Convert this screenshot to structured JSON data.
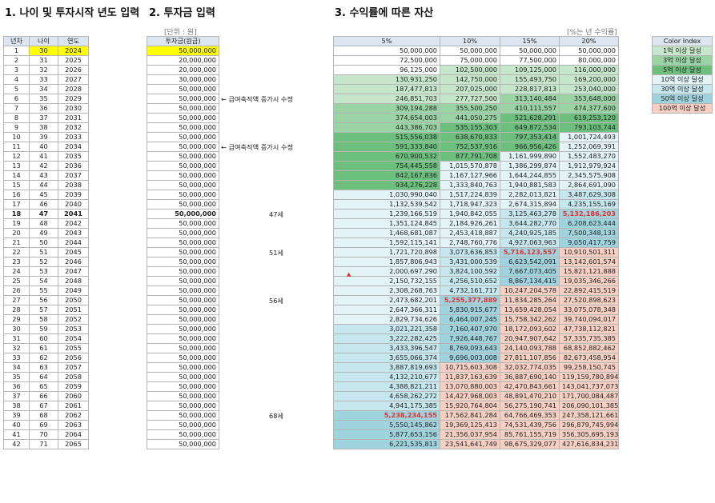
{
  "titles": {
    "section1": "1. 나이 및 투자시작 년도 입력",
    "section2": "2. 투자금 입력",
    "section3": "3. 수익률에 따른 자산"
  },
  "unit_labels": {
    "won": "[단위 : 원]",
    "rate": "[%는 년 수익률]"
  },
  "headers": {
    "year_no": "년차",
    "age": "나이",
    "year": "연도",
    "investment": "투자금(원금)"
  },
  "rate_headers": [
    "5%",
    "10%",
    "15%",
    "20%"
  ],
  "color_index": {
    "title": "Color Index",
    "items": [
      {
        "label": "1억 이상 달성",
        "color": "#c6e7cb"
      },
      {
        "label": "3억 이상 달성",
        "color": "#9ad4a4"
      },
      {
        "label": "5억 이상 달성",
        "color": "#6cbf7c"
      },
      {
        "label": "10억 이상 달성",
        "color": "#e4f3f6"
      },
      {
        "label": "30억 이상 달성",
        "color": "#c6e7ee"
      },
      {
        "label": "50억 이상 달성",
        "color": "#9fd3de"
      },
      {
        "label": "100억 이상 달성",
        "color": "#f7cfc3"
      }
    ]
  },
  "notes": [
    {
      "row": 6,
      "text": "← 급여축적액 증가시 수정"
    },
    {
      "row": 11,
      "text": "← 급여축적액 증가시 수정"
    }
  ],
  "age_labels": [
    {
      "row": 18,
      "text": "47세"
    },
    {
      "row": 22,
      "text": "51세"
    },
    {
      "row": 27,
      "text": "56세"
    },
    {
      "row": 39,
      "text": "68세"
    }
  ],
  "rows": [
    {
      "n": "1",
      "age": "30",
      "year": "2024",
      "inv": "50,000,000",
      "v": [
        "50,000,000",
        "50,000,000",
        "50,000,000",
        "50,000,000"
      ]
    },
    {
      "n": "2",
      "age": "31",
      "year": "2025",
      "inv": "20,000,000",
      "v": [
        "72,500,000",
        "75,000,000",
        "77,500,000",
        "80,000,000"
      ]
    },
    {
      "n": "3",
      "age": "32",
      "year": "2026",
      "inv": "20,000,000",
      "v": [
        "96,125,000",
        "102,500,000",
        "109,125,000",
        "116,000,000"
      ]
    },
    {
      "n": "4",
      "age": "33",
      "year": "2027",
      "inv": "30,000,000",
      "v": [
        "130,931,250",
        "142,750,000",
        "155,493,750",
        "169,200,000"
      ]
    },
    {
      "n": "5",
      "age": "34",
      "year": "2028",
      "inv": "50,000,000",
      "v": [
        "187,477,813",
        "207,025,000",
        "228,817,813",
        "253,040,000"
      ]
    },
    {
      "n": "6",
      "age": "35",
      "year": "2029",
      "inv": "50,000,000",
      "v": [
        "246,851,703",
        "277,727,500",
        "313,140,484",
        "353,648,000"
      ]
    },
    {
      "n": "7",
      "age": "36",
      "year": "2030",
      "inv": "50,000,000",
      "v": [
        "309,194,288",
        "355,500,250",
        "410,111,557",
        "474,377,600"
      ]
    },
    {
      "n": "8",
      "age": "37",
      "year": "2031",
      "inv": "50,000,000",
      "v": [
        "374,654,003",
        "441,050,275",
        "521,628,291",
        "619,253,120"
      ]
    },
    {
      "n": "9",
      "age": "38",
      "year": "2032",
      "inv": "50,000,000",
      "v": [
        "443,386,703",
        "535,155,303",
        "649,872,534",
        "793,103,744"
      ]
    },
    {
      "n": "10",
      "age": "39",
      "year": "2033",
      "inv": "50,000,000",
      "v": [
        "515,556,038",
        "638,670,833",
        "797,353,414",
        "1,001,724,493"
      ]
    },
    {
      "n": "11",
      "age": "40",
      "year": "2034",
      "inv": "50,000,000",
      "v": [
        "591,333,840",
        "752,537,916",
        "966,956,426",
        "1,252,069,391"
      ]
    },
    {
      "n": "12",
      "age": "41",
      "year": "2035",
      "inv": "50,000,000",
      "v": [
        "670,900,532",
        "877,791,708",
        "1,161,999,890",
        "1,552,483,270"
      ]
    },
    {
      "n": "13",
      "age": "42",
      "year": "2036",
      "inv": "50,000,000",
      "v": [
        "754,445,558",
        "1,015,570,878",
        "1,386,299,874",
        "1,912,979,924"
      ]
    },
    {
      "n": "14",
      "age": "43",
      "year": "2037",
      "inv": "50,000,000",
      "v": [
        "842,167,836",
        "1,167,127,966",
        "1,644,244,855",
        "2,345,575,908"
      ]
    },
    {
      "n": "15",
      "age": "44",
      "year": "2038",
      "inv": "50,000,000",
      "v": [
        "934,276,228",
        "1,333,840,763",
        "1,940,881,583",
        "2,864,691,090"
      ]
    },
    {
      "n": "16",
      "age": "45",
      "year": "2039",
      "inv": "50,000,000",
      "v": [
        "1,030,990,040",
        "1,517,224,839",
        "2,282,013,821",
        "3,487,629,308"
      ]
    },
    {
      "n": "17",
      "age": "46",
      "year": "2040",
      "inv": "50,000,000",
      "v": [
        "1,132,539,542",
        "1,718,947,323",
        "2,674,315,894",
        "4,235,155,169"
      ]
    },
    {
      "n": "18",
      "age": "47",
      "year": "2041",
      "inv": "50,000,000",
      "v": [
        "1,239,166,519",
        "1,940,842,055",
        "3,125,463,278",
        "5,132,186,203"
      ]
    },
    {
      "n": "19",
      "age": "48",
      "year": "2042",
      "inv": "50,000,000",
      "v": [
        "1,351,124,845",
        "2,184,926,261",
        "3,644,282,770",
        "6,208,623,444"
      ]
    },
    {
      "n": "20",
      "age": "49",
      "year": "2043",
      "inv": "50,000,000",
      "v": [
        "1,468,681,087",
        "2,453,418,887",
        "4,240,925,185",
        "7,500,348,133"
      ]
    },
    {
      "n": "21",
      "age": "50",
      "year": "2044",
      "inv": "50,000,000",
      "v": [
        "1,592,115,141",
        "2,748,760,776",
        "4,927,063,963",
        "9,050,417,759"
      ]
    },
    {
      "n": "22",
      "age": "51",
      "year": "2045",
      "inv": "50,000,000",
      "v": [
        "1,721,720,898",
        "3,073,636,853",
        "5,716,123,557",
        "10,910,501,311"
      ]
    },
    {
      "n": "23",
      "age": "52",
      "year": "2046",
      "inv": "50,000,000",
      "v": [
        "1,857,806,943",
        "3,431,000,539",
        "6,623,542,091",
        "13,142,601,574"
      ]
    },
    {
      "n": "24",
      "age": "53",
      "year": "2047",
      "inv": "50,000,000",
      "v": [
        "2,000,697,290",
        "3,824,100,592",
        "7,667,073,405",
        "15,821,121,888"
      ]
    },
    {
      "n": "25",
      "age": "54",
      "year": "2048",
      "inv": "50,000,000",
      "v": [
        "2,150,732,155",
        "4,256,510,652",
        "8,867,134,415",
        "19,035,346,266"
      ]
    },
    {
      "n": "26",
      "age": "55",
      "year": "2049",
      "inv": "50,000,000",
      "v": [
        "2,308,268,763",
        "4,732,161,717",
        "10,247,204,578",
        "22,892,415,519"
      ]
    },
    {
      "n": "27",
      "age": "56",
      "year": "2050",
      "inv": "50,000,000",
      "v": [
        "2,473,682,201",
        "5,255,377,889",
        "11,834,285,264",
        "27,520,898,623"
      ]
    },
    {
      "n": "28",
      "age": "57",
      "year": "2051",
      "inv": "50,000,000",
      "v": [
        "2,647,366,311",
        "5,830,915,677",
        "13,659,428,054",
        "33,075,078,348"
      ]
    },
    {
      "n": "29",
      "age": "58",
      "year": "2052",
      "inv": "50,000,000",
      "v": [
        "2,829,734,626",
        "6,464,007,245",
        "15,758,342,262",
        "39,740,094,017"
      ]
    },
    {
      "n": "30",
      "age": "59",
      "year": "2053",
      "inv": "50,000,000",
      "v": [
        "3,021,221,358",
        "7,160,407,970",
        "18,172,093,602",
        "47,738,112,821"
      ]
    },
    {
      "n": "31",
      "age": "60",
      "year": "2054",
      "inv": "50,000,000",
      "v": [
        "3,222,282,425",
        "7,926,448,767",
        "20,947,907,642",
        "57,335,735,385"
      ]
    },
    {
      "n": "32",
      "age": "61",
      "year": "2055",
      "inv": "50,000,000",
      "v": [
        "3,433,396,547",
        "8,769,093,643",
        "24,140,093,788",
        "68,852,882,462"
      ]
    },
    {
      "n": "33",
      "age": "62",
      "year": "2056",
      "inv": "50,000,000",
      "v": [
        "3,655,066,374",
        "9,696,003,008",
        "27,811,107,856",
        "82,673,458,954"
      ]
    },
    {
      "n": "34",
      "age": "63",
      "year": "2057",
      "inv": "50,000,000",
      "v": [
        "3,887,819,693",
        "10,715,603,308",
        "32,032,774,035",
        "99,258,150,745"
      ]
    },
    {
      "n": "35",
      "age": "64",
      "year": "2058",
      "inv": "50,000,000",
      "v": [
        "4,132,210,677",
        "11,837,163,639",
        "36,887,690,140",
        "119,159,780,894"
      ]
    },
    {
      "n": "36",
      "age": "65",
      "year": "2059",
      "inv": "50,000,000",
      "v": [
        "4,388,821,211",
        "13,070,880,003",
        "42,470,843,661",
        "143,041,737,073"
      ]
    },
    {
      "n": "37",
      "age": "66",
      "year": "2060",
      "inv": "50,000,000",
      "v": [
        "4,658,262,272",
        "14,427,968,003",
        "48,891,470,210",
        "171,700,084,487"
      ]
    },
    {
      "n": "38",
      "age": "67",
      "year": "2061",
      "inv": "50,000,000",
      "v": [
        "4,941,175,385",
        "15,920,764,804",
        "56,275,190,741",
        "206,090,101,385"
      ]
    },
    {
      "n": "39",
      "age": "68",
      "year": "2062",
      "inv": "50,000,000",
      "v": [
        "5,238,234,155",
        "17,562,841,284",
        "64,766,469,353",
        "247,358,121,661"
      ]
    },
    {
      "n": "40",
      "age": "69",
      "year": "2063",
      "inv": "50,000,000",
      "v": [
        "5,550,145,862",
        "19,369,125,413",
        "74,531,439,756",
        "296,879,745,994"
      ]
    },
    {
      "n": "41",
      "age": "70",
      "year": "2064",
      "inv": "50,000,000",
      "v": [
        "5,877,653,156",
        "21,356,037,954",
        "85,761,155,719",
        "356,305,695,193"
      ]
    },
    {
      "n": "42",
      "age": "71",
      "year": "2065",
      "inv": "50,000,000",
      "v": [
        "6,221,535,813",
        "23,541,641,749",
        "98,675,329,077",
        "427,616,834,231"
      ]
    }
  ]
}
